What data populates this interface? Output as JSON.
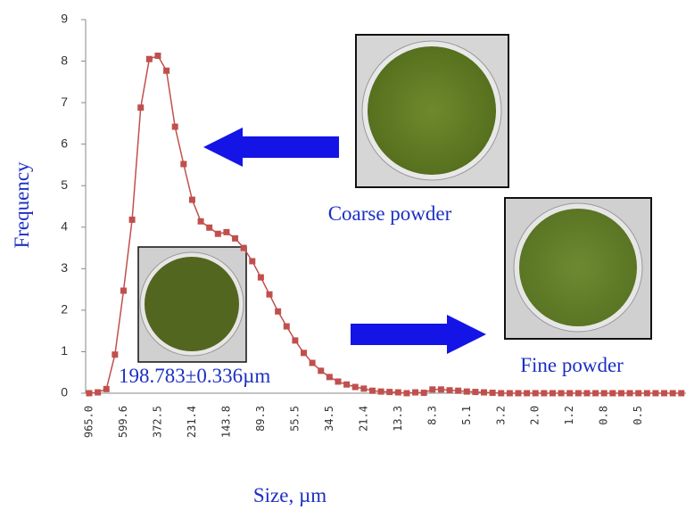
{
  "chart_data": {
    "type": "line",
    "y_label": "Frequency",
    "x_label": "Size, µm",
    "annotations": [
      "Coarse powder",
      "Fine powder",
      "198.783±0.336µm"
    ],
    "categories": [
      "965.0",
      null,
      null,
      null,
      "599.6",
      null,
      null,
      null,
      "372.5",
      null,
      null,
      null,
      "231.4",
      null,
      null,
      null,
      "143.8",
      null,
      null,
      null,
      "89.3",
      null,
      null,
      null,
      "55.5",
      null,
      null,
      null,
      "34.5",
      null,
      null,
      null,
      "21.4",
      null,
      null,
      null,
      "13.3",
      null,
      null,
      null,
      "8.3",
      null,
      null,
      null,
      "5.1",
      null,
      null,
      null,
      "3.2",
      null,
      null,
      null,
      "2.0",
      null,
      null,
      null,
      "1.2",
      null,
      null,
      null,
      "0.8",
      null,
      null,
      null,
      "0.5",
      null,
      null,
      null,
      null,
      null
    ],
    "series": [
      {
        "color": "#c0504d",
        "values": [
          0,
          0.02,
          0.1,
          0.93,
          2.47,
          4.18,
          6.88,
          8.05,
          8.13,
          7.77,
          6.42,
          5.52,
          4.66,
          4.14,
          3.99,
          3.84,
          3.88,
          3.73,
          3.5,
          3.18,
          2.79,
          2.38,
          1.97,
          1.61,
          1.27,
          0.97,
          0.73,
          0.54,
          0.39,
          0.28,
          0.21,
          0.15,
          0.11,
          0.06,
          0.04,
          0.03,
          0.02,
          0,
          0.02,
          0.01,
          0.09,
          0.09,
          0.07,
          0.06,
          0.04,
          0.03,
          0.02,
          0.01,
          0,
          0,
          0,
          0,
          0,
          0,
          0,
          0,
          0,
          0,
          0,
          0,
          0,
          0,
          0,
          0,
          0,
          0,
          0,
          0,
          0,
          0
        ]
      }
    ],
    "ylim": [
      0,
      9
    ],
    "yticks": [
      0,
      1,
      2,
      3,
      4,
      5,
      6,
      7,
      8,
      9
    ]
  }
}
